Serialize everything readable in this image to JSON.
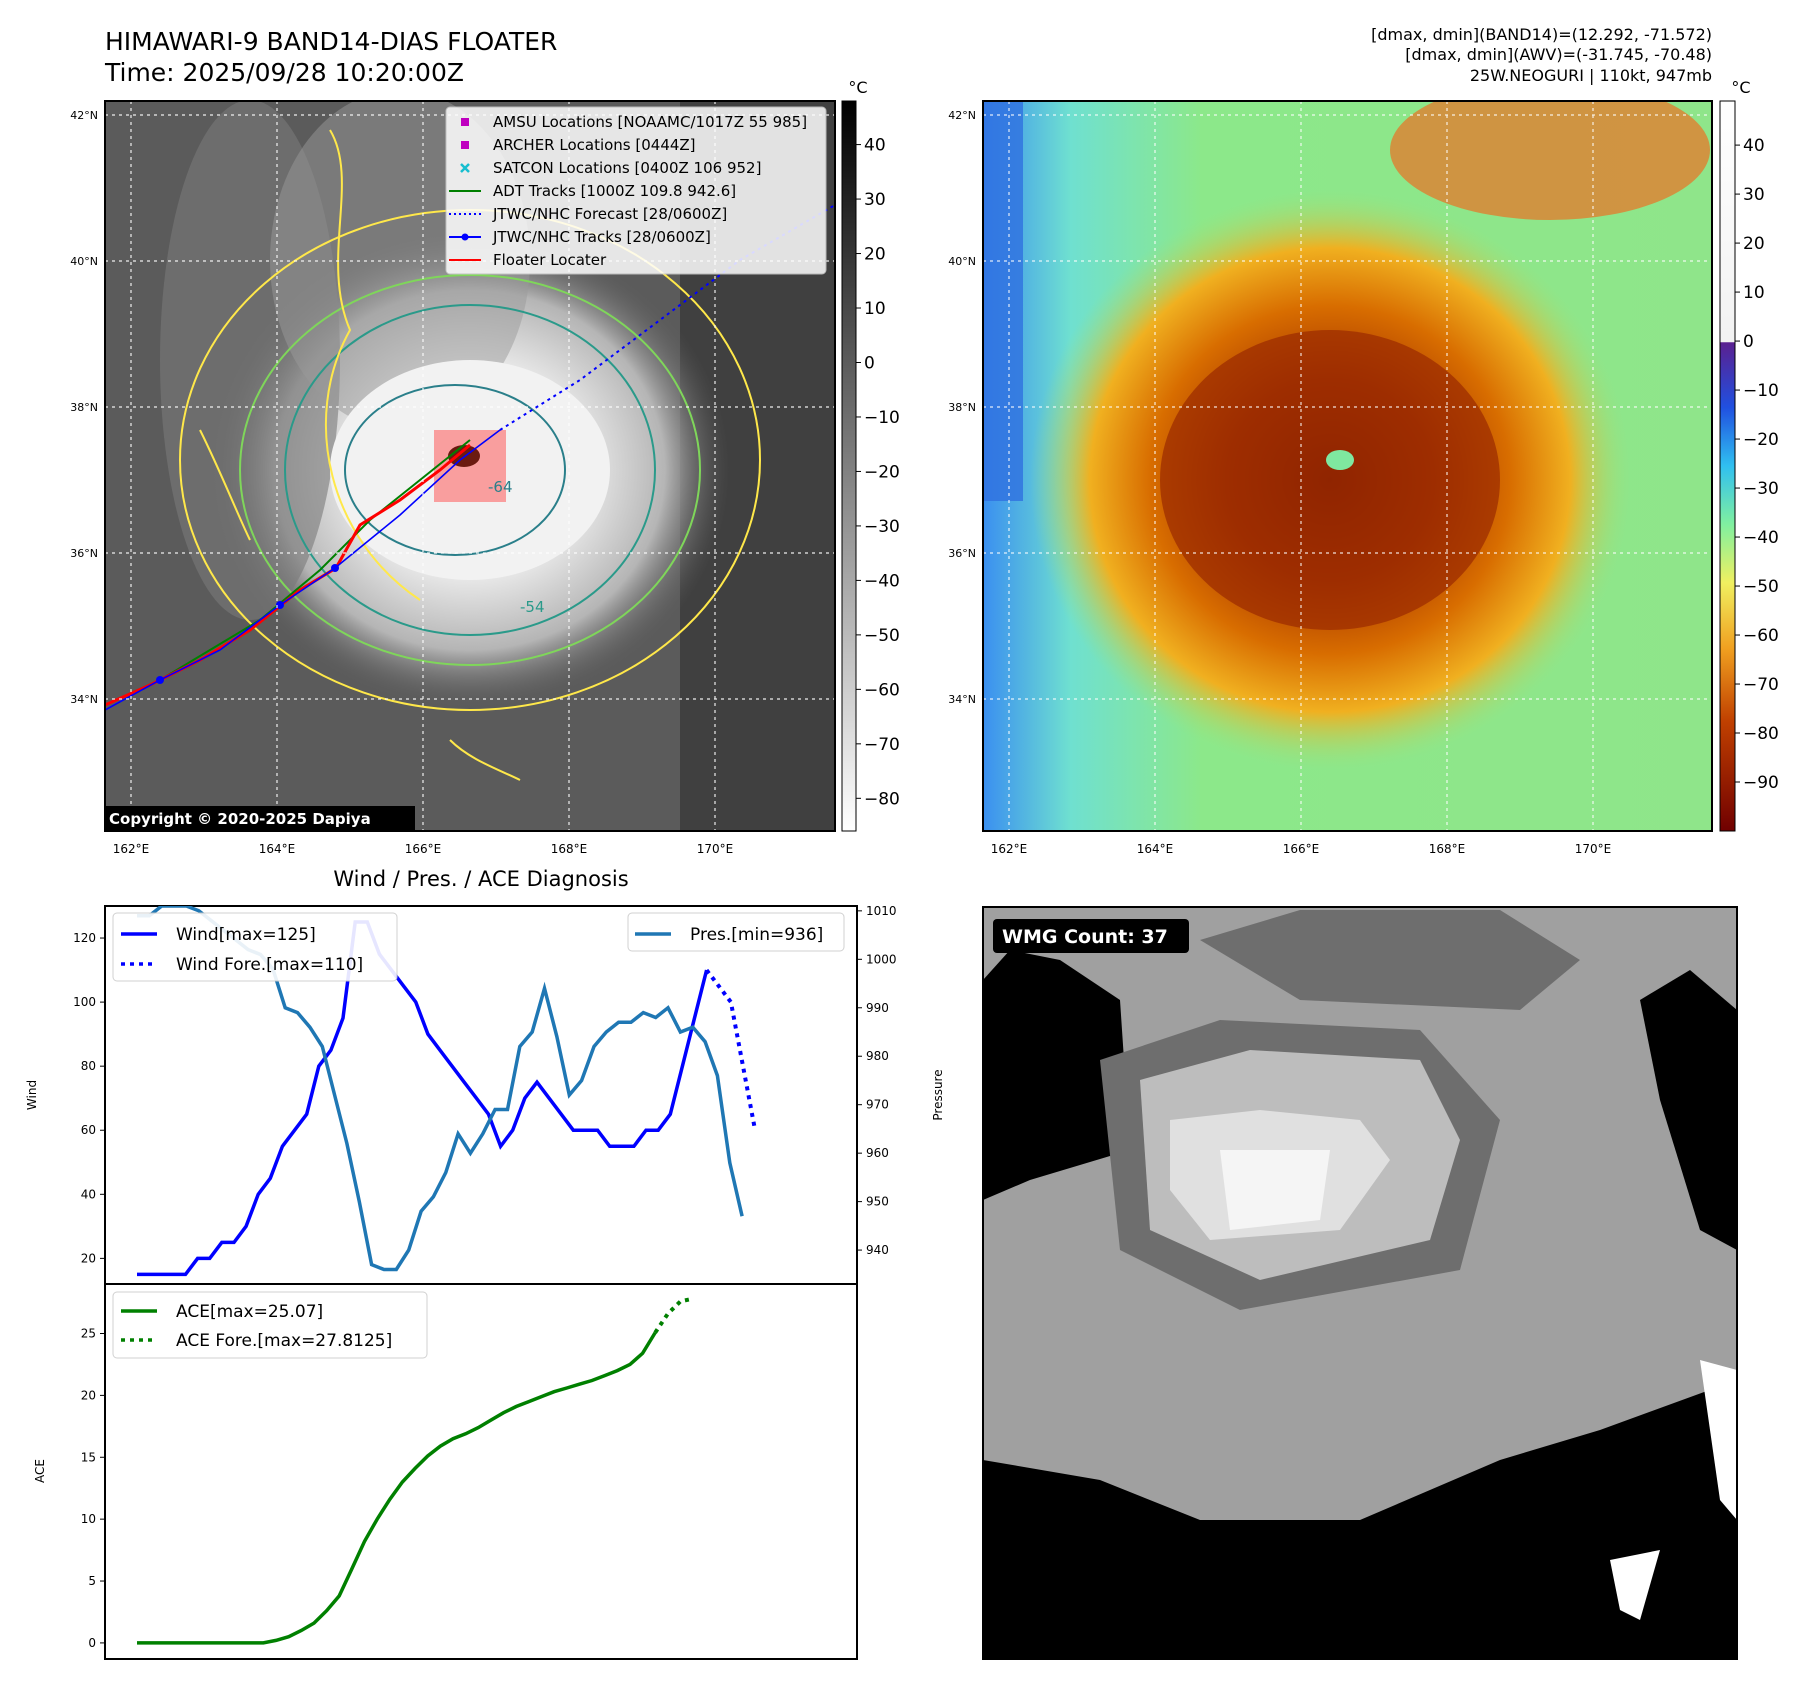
{
  "header": {
    "title_line1": "HIMAWARI-9 BAND14-DIAS FLOATER",
    "title_line2": "Time: 2025/09/28 10:20:00Z",
    "info_line1": "[dmax, dmin](BAND14)=(12.292, -71.572)",
    "info_line2": "[dmax, dmin](AWV)=(-31.745, -70.48)",
    "info_line3": "25W.NEOGURI | 110kt, 947mb"
  },
  "map_axes": {
    "lat_labels": [
      "42°N",
      "40°N",
      "38°N",
      "36°N",
      "34°N"
    ],
    "lon_labels": [
      "162°E",
      "164°E",
      "166°E",
      "168°E",
      "170°E"
    ]
  },
  "ir_panel": {
    "legend": [
      {
        "label": "AMSU Locations [NOAAMC/1017Z 55 985]",
        "marker": "square",
        "color": "#bf00bf"
      },
      {
        "label": "ARCHER Locations [0444Z]",
        "marker": "square",
        "color": "#bf00bf"
      },
      {
        "label": "SATCON Locations [0400Z 106 952]",
        "marker": "x",
        "color": "#17becf"
      },
      {
        "label": "ADT Tracks [1000Z 109.8 942.6]",
        "marker": "line",
        "color": "#008000"
      },
      {
        "label": "JTWC/NHC Forecast [28/0600Z]",
        "marker": "dotted",
        "color": "#0000ff"
      },
      {
        "label": "JTWC/NHC Tracks [28/0600Z]",
        "marker": "line-dot",
        "color": "#0000ff"
      },
      {
        "label": "Floater Locater",
        "marker": "line",
        "color": "#ff0000"
      }
    ],
    "copyright": "Copyright © 2020-2025 Dapiya",
    "contour_labels": [
      "-64",
      "-54"
    ],
    "colorbar": {
      "unit": "°C",
      "ticks": [
        "40",
        "30",
        "20",
        "10",
        "0",
        "−10",
        "−20",
        "−30",
        "−40",
        "−50",
        "−60",
        "−70",
        "−80"
      ]
    }
  },
  "wv_panel": {
    "colorbar": {
      "unit": "°C",
      "ticks": [
        "40",
        "30",
        "20",
        "10",
        "0",
        "−10",
        "−20",
        "−30",
        "−40",
        "−50",
        "−60",
        "−70",
        "−80",
        "−90"
      ]
    }
  },
  "wmg_panel": {
    "label": "WMG Count: 37"
  },
  "diagnosis_title": "Wind / Pres. / ACE Diagnosis",
  "chart_data": [
    {
      "type": "line",
      "title": "Wind / Pres. / ACE Diagnosis",
      "ylabel": "Wind",
      "ylabel_right": "Pressure",
      "ylim": [
        12,
        130
      ],
      "ylim_right": [
        933,
        1011
      ],
      "y_ticks": [
        "20",
        "40",
        "60",
        "80",
        "100",
        "120"
      ],
      "y_ticks_right": [
        "940",
        "950",
        "960",
        "970",
        "980",
        "990",
        "1000",
        "1010"
      ],
      "legend_left": [
        "Wind[max=125]",
        "Wind Fore.[max=110]"
      ],
      "legend_right": [
        "Pres.[min=936]"
      ],
      "series": [
        {
          "name": "Wind[max=125]",
          "axis": "left",
          "style": "solid",
          "color": "#0000ff",
          "values": [
            15,
            15,
            15,
            15,
            15,
            20,
            20,
            25,
            25,
            30,
            40,
            45,
            55,
            60,
            65,
            80,
            85,
            95,
            125,
            125,
            115,
            110,
            105,
            100,
            90,
            85,
            80,
            75,
            70,
            65,
            55,
            60,
            70,
            75,
            70,
            65,
            60,
            60,
            60,
            55,
            55,
            55,
            60,
            60,
            65,
            80,
            95,
            110
          ]
        },
        {
          "name": "Wind Fore.[max=110]",
          "axis": "left",
          "style": "dotted",
          "color": "#0000ff",
          "values": [
            110,
            105,
            100,
            80,
            60
          ],
          "start_index": 47
        },
        {
          "name": "Pres.[min=936]",
          "axis": "right",
          "style": "solid",
          "color": "#1f77b4",
          "values": [
            1009,
            1009,
            1011,
            1011,
            1011,
            1010,
            1008,
            1006,
            1004,
            1002,
            1001,
            998,
            990,
            989,
            986,
            982,
            972,
            962,
            950,
            937,
            936,
            936,
            940,
            948,
            951,
            956,
            964,
            960,
            964,
            969,
            969,
            982,
            985,
            994,
            984,
            972,
            975,
            982,
            985,
            987,
            987,
            989,
            988,
            990,
            985,
            986,
            983,
            976,
            958,
            947
          ]
        }
      ]
    },
    {
      "type": "line",
      "ylabel": "ACE",
      "ylim": [
        -1.3,
        29
      ],
      "y_ticks": [
        "0",
        "5",
        "10",
        "15",
        "20",
        "25"
      ],
      "legend_left": [
        "ACE[max=25.07]",
        "ACE Fore.[max=27.8125]"
      ],
      "series": [
        {
          "name": "ACE[max=25.07]",
          "style": "solid",
          "color": "#008000",
          "values": [
            0,
            0,
            0,
            0,
            0,
            0,
            0,
            0,
            0,
            0,
            0,
            0.2,
            0.5,
            1.0,
            1.6,
            2.6,
            3.8,
            6.0,
            8.2,
            10.0,
            11.6,
            13.0,
            14.1,
            15.1,
            15.9,
            16.5,
            16.9,
            17.4,
            18.0,
            18.6,
            19.1,
            19.5,
            19.9,
            20.3,
            20.6,
            20.9,
            21.2,
            21.6,
            22.0,
            22.5,
            23.4,
            25.07
          ]
        },
        {
          "name": "ACE Fore.[max=27.8125]",
          "style": "dotted",
          "color": "#008000",
          "values": [
            25.07,
            26.6,
            27.6,
            27.8125
          ],
          "start_index": 41
        }
      ]
    }
  ]
}
